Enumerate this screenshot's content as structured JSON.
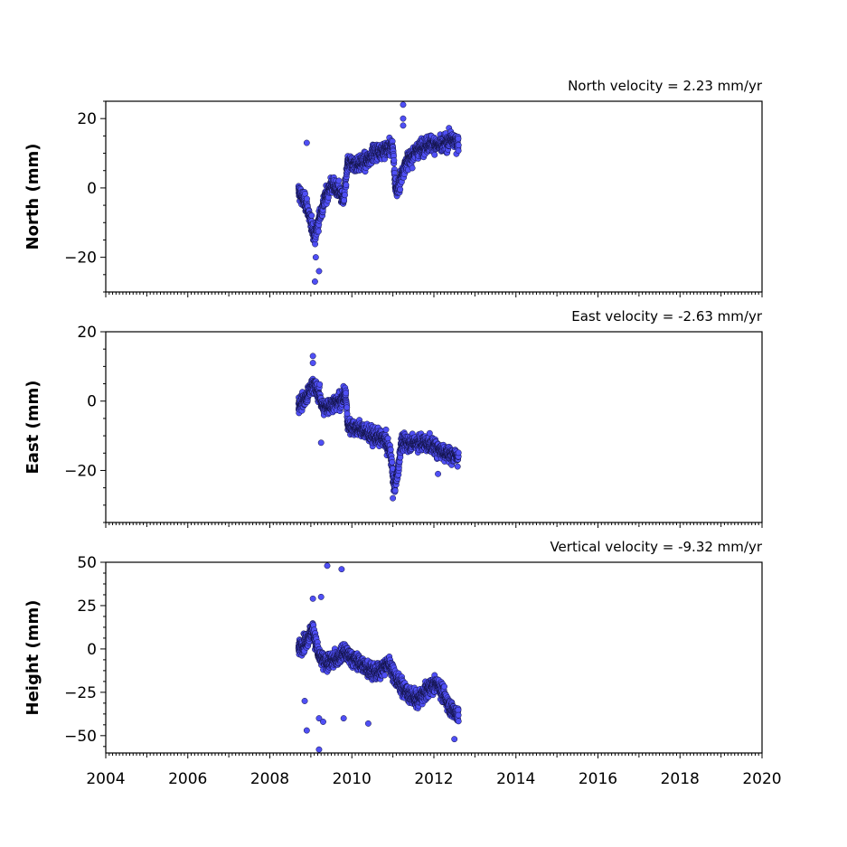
{
  "chart_data": [
    {
      "type": "scatter",
      "title": "North velocity = 2.23 mm/yr",
      "ylabel": "North (mm)",
      "xlim": [
        2004,
        2020
      ],
      "ylim": [
        -30,
        25
      ],
      "yticks": [
        -20,
        0,
        20
      ],
      "trend": [
        [
          2008.7,
          -1
        ],
        [
          2008.9,
          -5
        ],
        [
          2009.0,
          -10
        ],
        [
          2009.1,
          -14
        ],
        [
          2009.2,
          -9
        ],
        [
          2009.35,
          -3
        ],
        [
          2009.5,
          1
        ],
        [
          2009.7,
          -1
        ],
        [
          2009.8,
          -4
        ],
        [
          2009.9,
          7
        ],
        [
          2010.2,
          7
        ],
        [
          2010.4,
          8
        ],
        [
          2010.5,
          10
        ],
        [
          2010.8,
          11
        ],
        [
          2011.0,
          12
        ],
        [
          2011.05,
          2
        ],
        [
          2011.1,
          -1
        ],
        [
          2011.3,
          7
        ],
        [
          2011.6,
          11
        ],
        [
          2011.9,
          13
        ],
        [
          2012.2,
          12
        ],
        [
          2012.4,
          14
        ],
        [
          2012.6,
          13
        ]
      ],
      "outliers": [
        [
          2008.9,
          13
        ],
        [
          2009.1,
          -27
        ],
        [
          2009.12,
          -20
        ],
        [
          2009.2,
          -24
        ],
        [
          2011.25,
          24
        ],
        [
          2011.25,
          20
        ],
        [
          2011.25,
          18
        ]
      ]
    },
    {
      "type": "scatter",
      "title": "East velocity = -2.63 mm/yr",
      "ylabel": "East (mm)",
      "xlim": [
        2004,
        2020
      ],
      "ylim": [
        -35,
        20
      ],
      "yticks": [
        -20,
        0,
        20
      ],
      "trend": [
        [
          2008.7,
          -1
        ],
        [
          2008.9,
          1
        ],
        [
          2009.05,
          5
        ],
        [
          2009.2,
          2
        ],
        [
          2009.3,
          -2
        ],
        [
          2009.5,
          -1
        ],
        [
          2009.7,
          0
        ],
        [
          2009.85,
          2
        ],
        [
          2009.9,
          -7
        ],
        [
          2010.2,
          -8
        ],
        [
          2010.5,
          -10
        ],
        [
          2010.8,
          -11
        ],
        [
          2010.95,
          -15
        ],
        [
          2011.0,
          -22
        ],
        [
          2011.05,
          -25
        ],
        [
          2011.15,
          -18
        ],
        [
          2011.2,
          -12
        ],
        [
          2011.5,
          -12
        ],
        [
          2011.8,
          -12
        ],
        [
          2012.0,
          -13
        ],
        [
          2012.3,
          -15
        ],
        [
          2012.6,
          -16
        ]
      ],
      "outliers": [
        [
          2009.05,
          13
        ],
        [
          2009.05,
          11
        ],
        [
          2009.25,
          -12
        ],
        [
          2012.1,
          -21
        ],
        [
          2011.0,
          -28
        ]
      ]
    },
    {
      "type": "scatter",
      "title": "Vertical velocity = -9.32 mm/yr",
      "ylabel": "Height (mm)",
      "xlabel": "",
      "xlim": [
        2004,
        2020
      ],
      "ylim": [
        -60,
        50
      ],
      "yticks": [
        -50,
        -25,
        0,
        25,
        50
      ],
      "xticks": [
        2004,
        2006,
        2008,
        2010,
        2012,
        2014,
        2016,
        2018,
        2020
      ],
      "trend": [
        [
          2008.7,
          0
        ],
        [
          2008.9,
          5
        ],
        [
          2009.05,
          12
        ],
        [
          2009.2,
          -5
        ],
        [
          2009.4,
          -8
        ],
        [
          2009.6,
          -6
        ],
        [
          2009.8,
          -2
        ],
        [
          2010.0,
          -5
        ],
        [
          2010.3,
          -10
        ],
        [
          2010.6,
          -14
        ],
        [
          2010.9,
          -8
        ],
        [
          2011.1,
          -18
        ],
        [
          2011.3,
          -24
        ],
        [
          2011.6,
          -30
        ],
        [
          2011.9,
          -22
        ],
        [
          2012.1,
          -20
        ],
        [
          2012.4,
          -34
        ],
        [
          2012.6,
          -38
        ]
      ],
      "outliers": [
        [
          2009.4,
          48
        ],
        [
          2009.75,
          46
        ],
        [
          2009.2,
          -58
        ],
        [
          2009.2,
          -40
        ],
        [
          2008.9,
          -47
        ],
        [
          2009.3,
          -42
        ],
        [
          2009.8,
          -40
        ],
        [
          2010.4,
          -43
        ],
        [
          2008.85,
          -30
        ],
        [
          2009.25,
          30
        ],
        [
          2009.05,
          29
        ],
        [
          2012.5,
          -52
        ]
      ]
    }
  ]
}
